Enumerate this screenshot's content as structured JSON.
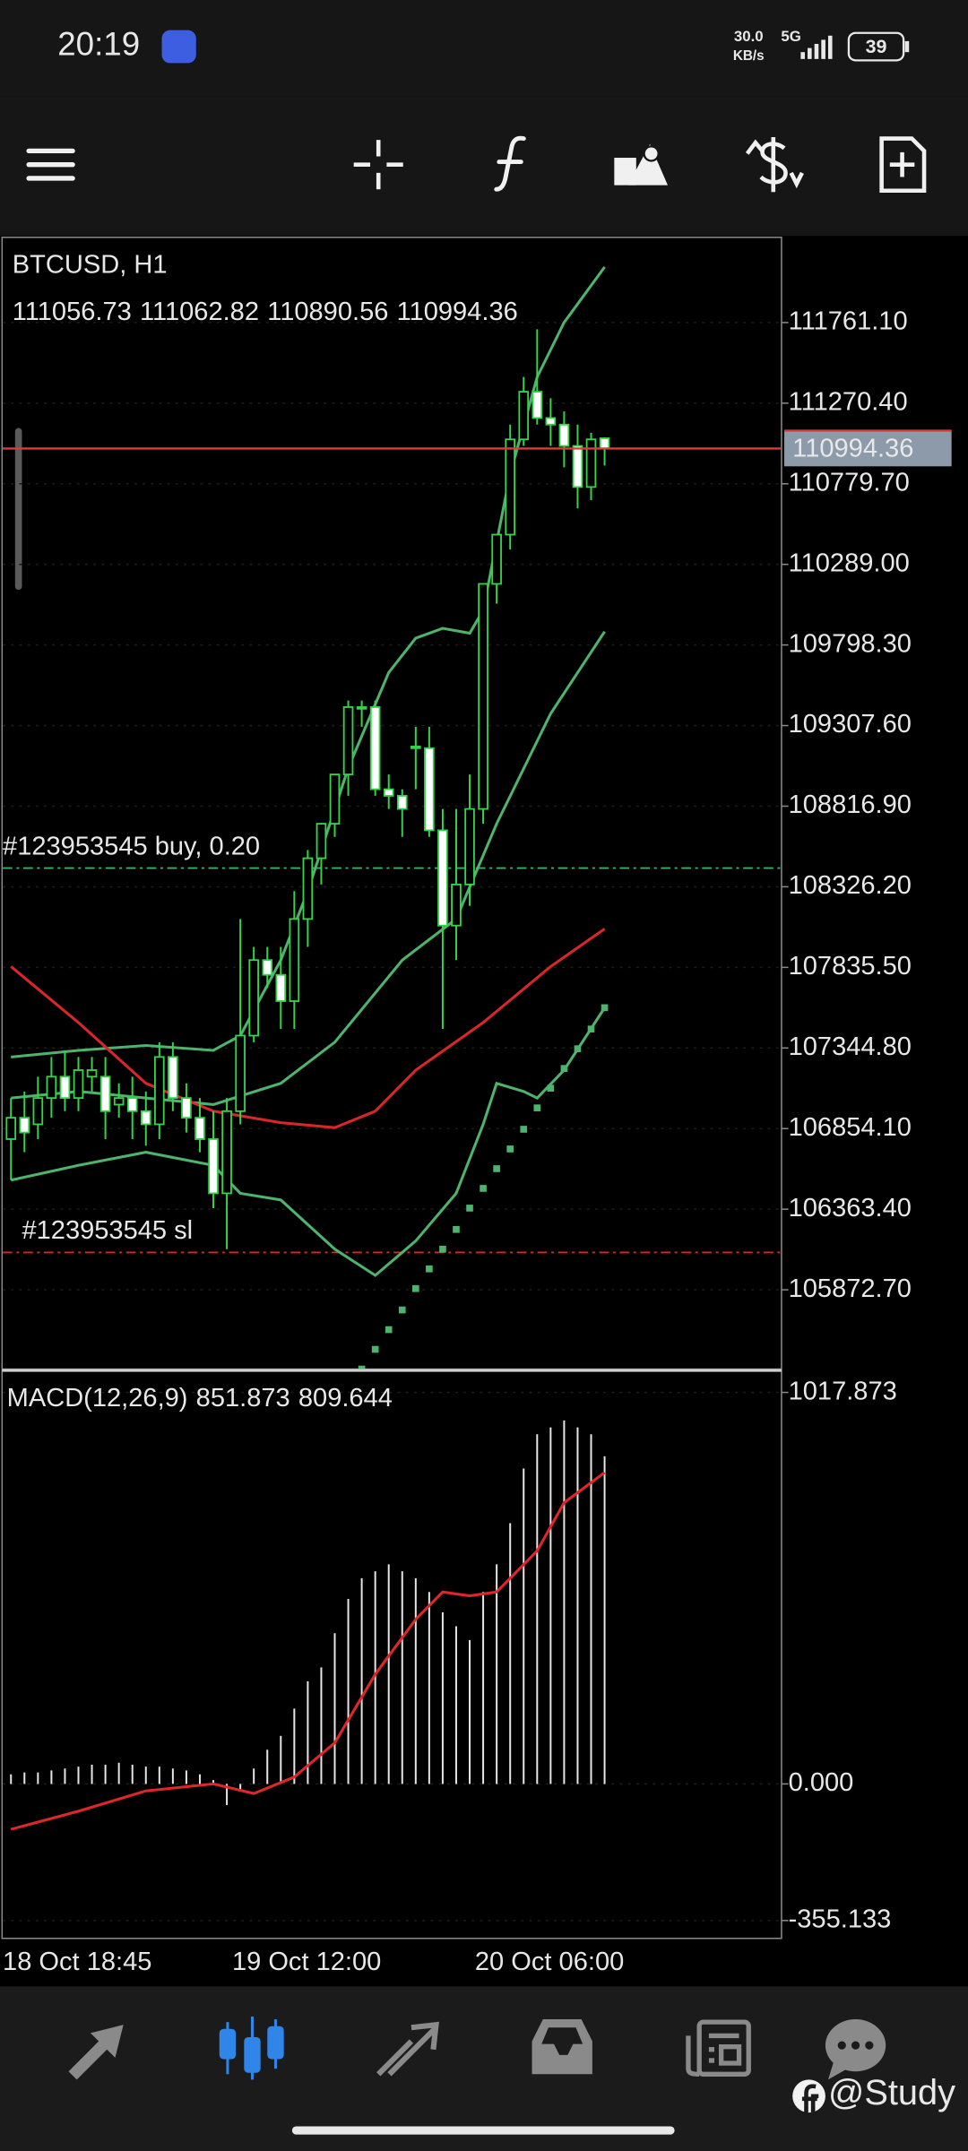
{
  "status_bar": {
    "time": "20:19",
    "net_speed": "30.0",
    "net_unit": "KB/s",
    "network": "5G",
    "battery": "39"
  },
  "watermark": "@Study",
  "chart_data": [
    {
      "type": "candlestick",
      "title": "BTCUSD, H1",
      "categories": [
        "18 Oct 18:45",
        null,
        null,
        null,
        null,
        null,
        null,
        null,
        null,
        null,
        null,
        null,
        null,
        null,
        null,
        null,
        null,
        "19 Oct 12:00",
        null,
        null,
        null,
        null,
        null,
        null,
        null,
        null,
        null,
        null,
        null,
        null,
        null,
        null,
        null,
        null,
        null,
        "20 Oct 06:00",
        null,
        null,
        null,
        null,
        null,
        null,
        null,
        null,
        null
      ],
      "open": [
        106790,
        106920,
        106880,
        107040,
        107170,
        107040,
        107170,
        107170,
        107000,
        107040,
        106960,
        106880,
        107290,
        107040,
        106920,
        106790,
        106460,
        106960,
        107420,
        107880,
        107790,
        107630,
        108130,
        108500,
        108710,
        109010,
        109420,
        109420,
        108920,
        108880,
        109170,
        109170,
        108670,
        108090,
        108340,
        108800,
        110170,
        110470,
        111050,
        111340,
        111180,
        111140,
        111010,
        110760,
        111056.73
      ],
      "high": [
        107040,
        107080,
        107170,
        107290,
        107330,
        107290,
        107290,
        107290,
        107130,
        107170,
        107080,
        107380,
        107380,
        107130,
        107040,
        106960,
        107040,
        108130,
        107960,
        107960,
        107960,
        108300,
        108550,
        108710,
        109010,
        109460,
        109460,
        109460,
        109010,
        108920,
        109300,
        109300,
        108800,
        108800,
        109010,
        110170,
        110470,
        111140,
        111430,
        111720,
        111300,
        111220,
        111140,
        111090,
        111062.82
      ],
      "low": [
        106540,
        106710,
        106790,
        106920,
        106960,
        106960,
        107080,
        106790,
        106920,
        106790,
        106750,
        106790,
        106960,
        106830,
        106710,
        106370,
        106120,
        106880,
        107380,
        107710,
        107460,
        107460,
        107960,
        108340,
        108630,
        108880,
        109300,
        108880,
        108800,
        108630,
        108920,
        108630,
        107460,
        107880,
        108210,
        108710,
        110050,
        110380,
        111010,
        111140,
        111010,
        110880,
        110630,
        110680,
        110890.56
      ],
      "close": [
        106920,
        106830,
        107040,
        107170,
        107040,
        107210,
        107210,
        106960,
        107040,
        106960,
        106880,
        107290,
        107040,
        106920,
        106790,
        106460,
        106960,
        107420,
        107880,
        107790,
        107630,
        108130,
        108500,
        108710,
        109010,
        109420,
        109410,
        108920,
        108880,
        108800,
        109180,
        108670,
        108090,
        108340,
        108800,
        110170,
        110470,
        111050,
        111340,
        111180,
        111140,
        111010,
        110760,
        111050,
        110994.36
      ],
      "candle_color": "#35d24a",
      "down_fill": "#ffffff",
      "up_fill": "#000000",
      "current_price_color": "#e0383c",
      "current_price_box": "#8c9aaa",
      "ylim": [
        105390,
        112280
      ],
      "yticks": [
        {
          "value": 111761.1,
          "label": "111761.10"
        },
        {
          "value": 111270.4,
          "label": "111270.40"
        },
        {
          "value": 110779.7,
          "label": "110779.70"
        },
        {
          "value": 110289,
          "label": "110289.00"
        },
        {
          "value": 109798.3,
          "label": "109798.30"
        },
        {
          "value": 109307.6,
          "label": "109307.60"
        },
        {
          "value": 108816.9,
          "label": "108816.90"
        },
        {
          "value": 108326.2,
          "label": "108326.20"
        },
        {
          "value": 107835.5,
          "label": "107835.50"
        },
        {
          "value": 107344.8,
          "label": "107344.80"
        },
        {
          "value": 106854.1,
          "label": "106854.10"
        },
        {
          "value": 106363.4,
          "label": "106363.40"
        },
        {
          "value": 105872.7,
          "label": "105872.70"
        }
      ],
      "grid": true,
      "overlays": [
        {
          "type": "line",
          "color": "#4db36d",
          "x": [
            0,
            5,
            10,
            15,
            17,
            20,
            22,
            25,
            28,
            30,
            32,
            34,
            35,
            37,
            39,
            41,
            44
          ],
          "values": [
            107290,
            107330,
            107360,
            107330,
            107420,
            107880,
            108300,
            109050,
            109630,
            109840,
            109900,
            109870,
            110010,
            110840,
            111430,
            111761,
            112100
          ]
        },
        {
          "type": "line",
          "color": "#4db36d",
          "x": [
            0,
            5,
            10,
            15,
            20,
            24,
            29,
            33,
            36,
            40,
            44
          ],
          "values": [
            107040,
            107080,
            107040,
            107000,
            107130,
            107380,
            107880,
            108130,
            108710,
            109380,
            109880
          ]
        },
        {
          "type": "line",
          "color": "#4db36d",
          "x": [
            0,
            5,
            10,
            15,
            17,
            20,
            24,
            27,
            30,
            33,
            35,
            36,
            38,
            39,
            41,
            44
          ],
          "values": [
            106540,
            106630,
            106710,
            106630,
            106460,
            106420,
            106120,
            105960,
            106170,
            106460,
            106880,
            107130,
            107080,
            107040,
            107210,
            107590
          ]
        },
        {
          "type": "line",
          "color": "#d8262a",
          "x": [
            0,
            5,
            10,
            15,
            20,
            24,
            27,
            30,
            35,
            40,
            44
          ],
          "values": [
            107840,
            107500,
            107130,
            106960,
            106890,
            106860,
            106960,
            107210,
            107500,
            107840,
            108070
          ]
        },
        {
          "type": "dots",
          "color": "#4db36d",
          "x": [
            26,
            27,
            28,
            29,
            30,
            31,
            32,
            33,
            34,
            35,
            36,
            37,
            38,
            39,
            40,
            41,
            42,
            43,
            44
          ],
          "values": [
            105390,
            105510,
            105630,
            105750,
            105880,
            106000,
            106120,
            106240,
            106370,
            106490,
            106610,
            106730,
            106850,
            106980,
            107100,
            107220,
            107340,
            107460,
            107590
          ]
        }
      ],
      "orders": [
        {
          "label": "#123953545 buy, 0.20",
          "price": 108440,
          "color": "#3fae63"
        },
        {
          "label": "#123953545 sl",
          "price": 106100,
          "color": "#d8262a"
        }
      ]
    },
    {
      "type": "macd",
      "title": "MACD(12,26,9)",
      "values": [
        25,
        30,
        30,
        35,
        40,
        45,
        50,
        50,
        55,
        50,
        45,
        45,
        40,
        35,
        25,
        10,
        -55,
        -15,
        40,
        89,
        125,
        196,
        267,
        303,
        392,
        481,
        535,
        553,
        571,
        553,
        535,
        499,
        446,
        410,
        374,
        499,
        571,
        678,
        820,
        909,
        927,
        945,
        927,
        909,
        851.873
      ],
      "color": "#e6e6e6",
      "signal": {
        "color": "#e0262a",
        "x": [
          0,
          5,
          10,
          15,
          18,
          21,
          24,
          27,
          30,
          32,
          34,
          36,
          39,
          41,
          44
        ],
        "values": [
          -118,
          -71,
          -18,
          0,
          -25,
          18,
          107,
          285,
          428,
          499,
          489,
          499,
          606,
          731,
          809.644
        ]
      },
      "ylim": [
        -401.5,
        1071.4
      ],
      "yticks": [
        1017.873,
        {
          "value": 0,
          "label": "0.000"
        },
        -355.133
      ]
    }
  ]
}
